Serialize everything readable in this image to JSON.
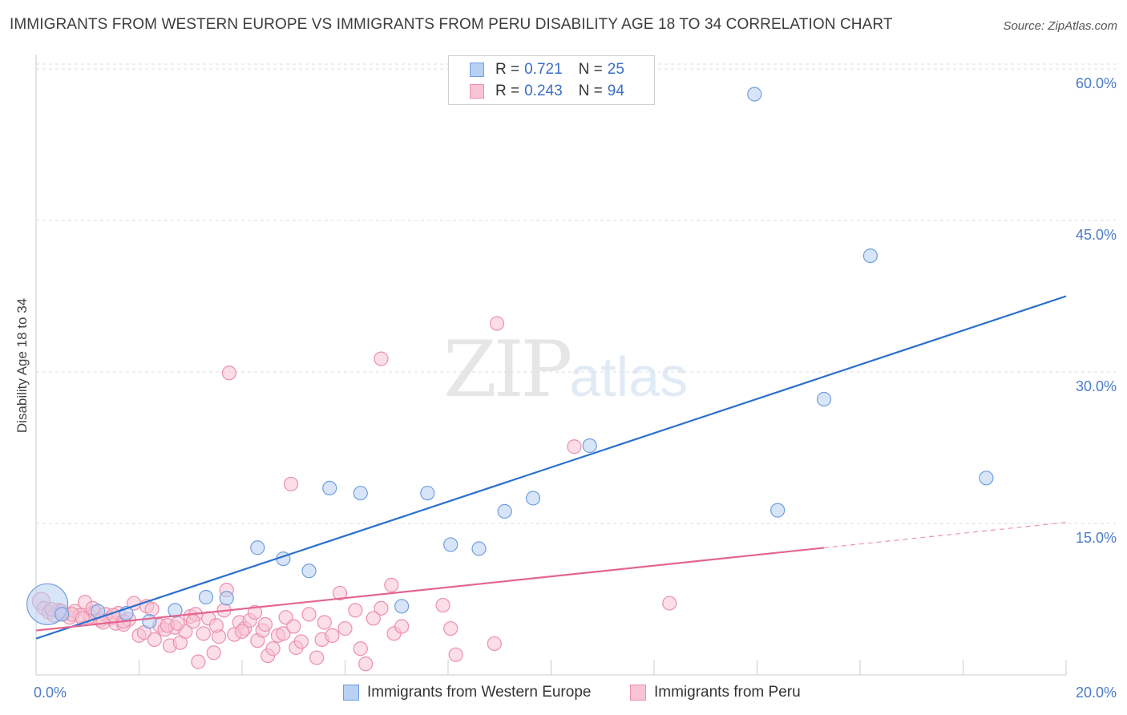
{
  "title": "IMMIGRANTS FROM WESTERN EUROPE VS IMMIGRANTS FROM PERU DISABILITY AGE 18 TO 34 CORRELATION CHART",
  "source": "Source: ZipAtlas.com",
  "watermark": {
    "zip": "ZIP",
    "atlas": "atlas"
  },
  "legend": {
    "rows": [
      {
        "r_label": "R =",
        "r_value": "0.721",
        "n_label": "N =",
        "n_value": "25"
      },
      {
        "r_label": "R =",
        "r_value": "0.243",
        "n_label": "N =",
        "n_value": "94"
      }
    ]
  },
  "chart_data": {
    "type": "scatter",
    "title": "IMMIGRANTS FROM WESTERN EUROPE VS IMMIGRANTS FROM PERU DISABILITY AGE 18 TO 34 CORRELATION CHART",
    "xlabel": "",
    "ylabel": "Disability Age 18 to 34",
    "xlim": [
      0,
      20
    ],
    "ylim": [
      0,
      62
    ],
    "x_tick_labels": [
      {
        "value": 0,
        "label": "0.0%"
      },
      {
        "value": 20,
        "label": "20.0%"
      }
    ],
    "y_tick_labels": [
      {
        "value": 15,
        "label": "15.0%"
      },
      {
        "value": 30,
        "label": "30.0%"
      },
      {
        "value": 45,
        "label": "45.0%"
      },
      {
        "value": 60,
        "label": "60.0%"
      }
    ],
    "x_minor_ticks": [
      2,
      4,
      6,
      8,
      10,
      12,
      14,
      16,
      18,
      20
    ],
    "colors": {
      "blue_fill": "#b8d0f2",
      "blue_stroke": "#6f9ee0",
      "blue_line": "#2b6fcf",
      "pink_fill": "#f8c3d3",
      "pink_stroke": "#ec8fad",
      "pink_line": "#e3668f",
      "grid": "#dcdcdc",
      "axis": "#cccccc"
    },
    "series": [
      {
        "name": "Immigrants from Western Europe",
        "color": "#b8d0f2",
        "trend": {
          "x0": 0,
          "y0": 3.6,
          "x1": 20,
          "y1": 37.5,
          "dashed_from": null
        },
        "points": [
          [
            0.22,
            7.0,
            3
          ],
          [
            1.2,
            6.3,
            1
          ],
          [
            1.75,
            6.1,
            1
          ],
          [
            2.2,
            5.3,
            1
          ],
          [
            2.7,
            6.4,
            1
          ],
          [
            3.3,
            7.7,
            1
          ],
          [
            3.7,
            7.6,
            1
          ],
          [
            4.3,
            12.6,
            1
          ],
          [
            4.8,
            11.5,
            1
          ],
          [
            5.3,
            10.3,
            1
          ],
          [
            5.7,
            18.5,
            1
          ],
          [
            6.3,
            18.0,
            1
          ],
          [
            7.1,
            6.8,
            1
          ],
          [
            7.6,
            18.0,
            1
          ],
          [
            8.05,
            12.9,
            1
          ],
          [
            8.6,
            12.5,
            1
          ],
          [
            9.1,
            16.2,
            1
          ],
          [
            9.65,
            17.5,
            1
          ],
          [
            10.75,
            22.7,
            1
          ],
          [
            13.95,
            57.5,
            1
          ],
          [
            14.4,
            16.3,
            1
          ],
          [
            15.3,
            27.3,
            1
          ],
          [
            16.2,
            41.5,
            1
          ],
          [
            18.45,
            19.5,
            1
          ],
          [
            0.5,
            6.0,
            1
          ]
        ]
      },
      {
        "name": "Immigrants from Peru",
        "color": "#f8c3d3",
        "trend": {
          "x0": 0,
          "y0": 4.4,
          "x1": 20,
          "y1": 15.1,
          "dashed_from": 15.3
        },
        "points": [
          [
            0.1,
            7.3,
            1.3
          ],
          [
            0.15,
            6.6,
            1
          ],
          [
            0.25,
            6.2,
            1
          ],
          [
            0.35,
            5.9,
            1
          ],
          [
            0.45,
            6.4,
            1
          ],
          [
            0.55,
            6.1,
            1
          ],
          [
            0.65,
            5.7,
            1
          ],
          [
            0.75,
            6.3,
            1
          ],
          [
            0.85,
            5.9,
            1
          ],
          [
            0.95,
            7.2,
            1
          ],
          [
            1.05,
            5.8,
            1
          ],
          [
            1.15,
            6.2,
            1
          ],
          [
            1.25,
            5.4,
            1
          ],
          [
            1.35,
            6.0,
            1
          ],
          [
            1.45,
            5.6,
            1
          ],
          [
            1.55,
            5.1,
            1
          ],
          [
            1.6,
            6.1,
            1
          ],
          [
            1.7,
            5.0,
            1
          ],
          [
            1.8,
            5.5,
            1
          ],
          [
            1.9,
            7.1,
            1
          ],
          [
            2.0,
            3.9,
            1
          ],
          [
            2.1,
            4.2,
            1
          ],
          [
            2.15,
            6.8,
            1
          ],
          [
            2.3,
            3.5,
            1
          ],
          [
            2.4,
            4.9,
            1
          ],
          [
            2.5,
            4.5,
            1
          ],
          [
            2.6,
            2.9,
            1
          ],
          [
            2.7,
            4.7,
            1
          ],
          [
            2.8,
            3.2,
            1
          ],
          [
            2.9,
            4.3,
            1
          ],
          [
            3.0,
            5.8,
            1
          ],
          [
            3.1,
            6.0,
            1
          ],
          [
            3.15,
            1.3,
            1
          ],
          [
            3.25,
            4.1,
            1
          ],
          [
            3.35,
            5.6,
            1
          ],
          [
            3.45,
            2.2,
            1
          ],
          [
            3.55,
            3.8,
            1
          ],
          [
            3.65,
            6.4,
            1
          ],
          [
            3.7,
            8.4,
            1
          ],
          [
            3.75,
            29.9,
            1
          ],
          [
            3.85,
            4.0,
            1
          ],
          [
            3.95,
            5.2,
            1
          ],
          [
            4.05,
            4.6,
            1
          ],
          [
            4.15,
            5.4,
            1
          ],
          [
            4.25,
            6.2,
            1
          ],
          [
            4.3,
            3.4,
            1
          ],
          [
            4.4,
            4.4,
            1
          ],
          [
            4.5,
            1.9,
            1
          ],
          [
            4.6,
            2.6,
            1
          ],
          [
            4.7,
            3.9,
            1
          ],
          [
            4.8,
            4.1,
            1
          ],
          [
            4.85,
            5.7,
            1
          ],
          [
            4.95,
            18.9,
            1
          ],
          [
            5.05,
            2.7,
            1
          ],
          [
            5.15,
            3.3,
            1
          ],
          [
            5.3,
            6.0,
            1
          ],
          [
            5.45,
            1.7,
            1
          ],
          [
            5.55,
            3.5,
            1
          ],
          [
            5.75,
            3.9,
            1
          ],
          [
            5.9,
            8.1,
            1
          ],
          [
            6.0,
            4.6,
            1
          ],
          [
            6.2,
            6.4,
            1
          ],
          [
            6.3,
            2.6,
            1
          ],
          [
            6.4,
            1.1,
            1
          ],
          [
            6.7,
            6.6,
            1
          ],
          [
            6.9,
            8.9,
            1
          ],
          [
            6.95,
            4.1,
            1
          ],
          [
            7.1,
            4.8,
            1
          ],
          [
            6.7,
            31.3,
            1
          ],
          [
            7.9,
            6.9,
            1
          ],
          [
            8.05,
            4.6,
            1
          ],
          [
            8.15,
            2.0,
            1
          ],
          [
            8.9,
            3.1,
            1
          ],
          [
            8.95,
            34.8,
            1
          ],
          [
            10.45,
            22.6,
            1
          ],
          [
            12.3,
            7.1,
            1
          ],
          [
            0.3,
            6.5,
            1
          ],
          [
            0.5,
            6.3,
            1
          ],
          [
            0.7,
            6.0,
            1
          ],
          [
            0.9,
            5.6,
            1
          ],
          [
            1.1,
            6.6,
            1
          ],
          [
            1.3,
            5.2,
            1
          ],
          [
            1.5,
            5.9,
            1
          ],
          [
            1.7,
            5.3,
            1
          ],
          [
            2.25,
            6.5,
            1
          ],
          [
            2.55,
            4.9,
            1
          ],
          [
            2.75,
            5.1,
            1
          ],
          [
            3.05,
            5.3,
            1
          ],
          [
            3.5,
            4.9,
            1
          ],
          [
            4.0,
            4.3,
            1
          ],
          [
            4.45,
            5.0,
            1
          ],
          [
            5.0,
            4.8,
            1
          ],
          [
            5.6,
            5.2,
            1
          ],
          [
            6.55,
            5.6,
            1
          ]
        ]
      }
    ]
  },
  "bottom_legend": [
    {
      "label": "Immigrants from Western Europe"
    },
    {
      "label": "Immigrants from Peru"
    }
  ]
}
